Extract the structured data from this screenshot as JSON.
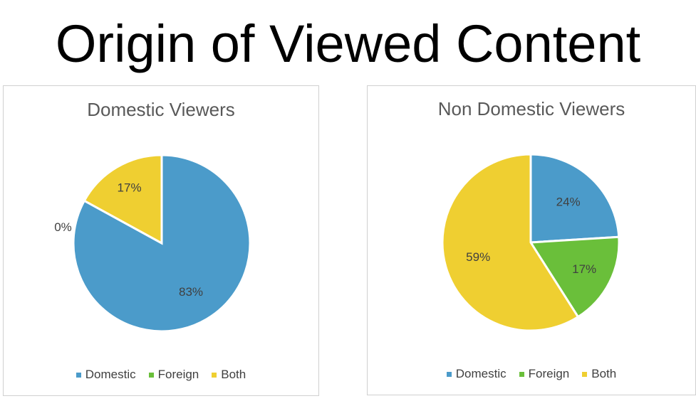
{
  "title": "Origin of Viewed Content",
  "colors": {
    "Domestic": "#4b9bca",
    "Foreign": "#6abf3a",
    "Both": "#efcf31"
  },
  "chart_data": [
    {
      "type": "pie",
      "title": "Domestic Viewers",
      "categories": [
        "Domestic",
        "Foreign",
        "Both"
      ],
      "values": [
        83,
        0,
        17
      ],
      "labels": [
        "83%",
        "0%",
        "17%"
      ],
      "legend": "bottom"
    },
    {
      "type": "pie",
      "title": "Non Domestic Viewers",
      "categories": [
        "Domestic",
        "Foreign",
        "Both"
      ],
      "values": [
        24,
        17,
        59
      ],
      "labels": [
        "24%",
        "17%",
        "59%"
      ],
      "legend": "bottom"
    }
  ]
}
